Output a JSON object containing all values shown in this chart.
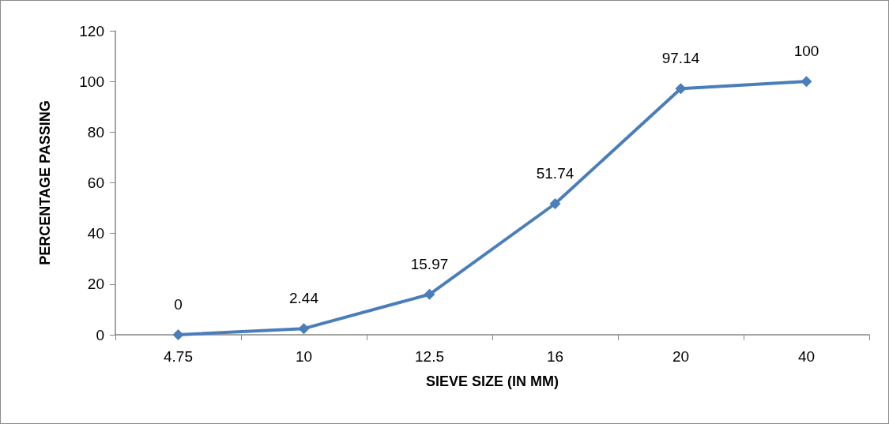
{
  "chart_data": {
    "type": "line",
    "xlabel": "SIEVE SIZE (IN MM)",
    "ylabel": "PERCENTAGE PASSING",
    "categories": [
      "4.75",
      "10",
      "12.5",
      "16",
      "20",
      "40"
    ],
    "series": [
      {
        "color": "#4a7ebb",
        "values": [
          0,
          2.44,
          15.97,
          51.74,
          97.14,
          100
        ]
      }
    ],
    "ylim": [
      0,
      120
    ],
    "yticks": [
      0,
      20,
      40,
      60,
      80,
      100,
      120
    ],
    "grid": false,
    "marker": "diamond",
    "line_style": "solid",
    "data_labels": true
  }
}
